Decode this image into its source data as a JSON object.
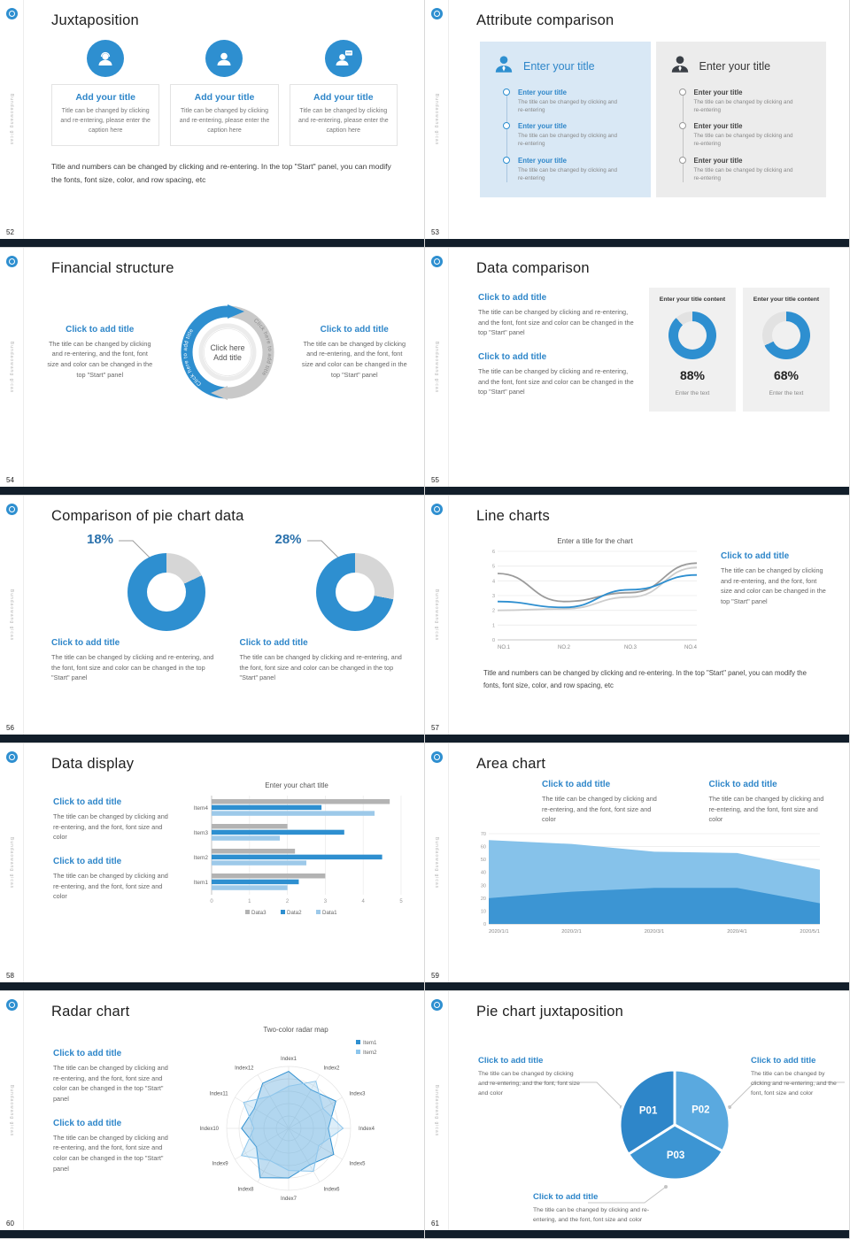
{
  "sidebar": {
    "text": "Bundaowang gicas"
  },
  "colors": {
    "accent": "#2e8fd0",
    "accent_text": "#2e86c9",
    "footer_bar": "#121e2a",
    "panel_blue": "#d9e8f5",
    "panel_gray": "#ececec"
  },
  "icons": {
    "logo": "brand-logo-icon",
    "card1": "support-agent-icon",
    "card2": "user-icon",
    "card3": "chat-user-icon",
    "panel_left": "person-blue-icon",
    "panel_right": "person-dark-icon"
  },
  "slides": [
    {
      "number": "52",
      "title": "Juxtaposition",
      "cards": [
        {
          "title": "Add your title",
          "caption": "Title can be changed by clicking and re-entering, please enter the caption here"
        },
        {
          "title": "Add your title",
          "caption": "Title can be changed by clicking and re-entering, please enter the caption here"
        },
        {
          "title": "Add your title",
          "caption": "Title can be changed by clicking and re-entering, please enter the caption here"
        }
      ],
      "footnote": "Title and numbers can be changed by clicking and re-entering. In the top \"Start\" panel, you can modify the fonts, font size, color, and row spacing, etc"
    },
    {
      "number": "53",
      "title": "Attribute comparison",
      "panels": [
        {
          "title": "Enter your title",
          "items": [
            {
              "title": "Enter your title",
              "desc": "The title can be changed by clicking and re-entering"
            },
            {
              "title": "Enter your title",
              "desc": "The title can be changed by clicking and re-entering"
            },
            {
              "title": "Enter your title",
              "desc": "The title can be changed by clicking and re-entering"
            }
          ]
        },
        {
          "title": "Enter your title",
          "items": [
            {
              "title": "Enter your title",
              "desc": "The title can be changed by clicking and re-entering"
            },
            {
              "title": "Enter your title",
              "desc": "The title can be changed by clicking and re-entering"
            },
            {
              "title": "Enter your title",
              "desc": "The title can be changed by clicking and re-entering"
            }
          ]
        }
      ]
    },
    {
      "number": "54",
      "title": "Financial structure",
      "left": {
        "heading": "Click to add title",
        "body": "The title can be changed by clicking and re-entering, and the font, font size and color can be changed in the top \"Start\" panel"
      },
      "right": {
        "heading": "Click to add title",
        "body": "The title can be changed by clicking and re-entering, and the font, font size and color can be changed in the top \"Start\" panel"
      },
      "center": {
        "line1": "Click here",
        "line2": "Add title"
      },
      "arc_label_left": "Click here to add title",
      "arc_label_right": "Click here to add title"
    },
    {
      "number": "55",
      "title": "Data comparison",
      "sections": [
        {
          "heading": "Click to add title",
          "body": "The title can be changed by clicking and re-entering, and the font, font size and color can be changed in the top \"Start\" panel"
        },
        {
          "heading": "Click to add title",
          "body": "The title can be changed by clicking and re-entering, and the font, font size and color can be changed in the top \"Start\" panel"
        }
      ],
      "cards": [
        {
          "header": "Enter your title content",
          "percent_label": "88%",
          "caption": "Enter the text",
          "donut": {
            "value": 88,
            "color": "#2e8fd0",
            "rest": "#e2e2e2"
          }
        },
        {
          "header": "Enter your title content",
          "percent_label": "68%",
          "caption": "Enter the text",
          "donut": {
            "value": 68,
            "color": "#2e8fd0",
            "rest": "#e2e2e2"
          }
        }
      ]
    },
    {
      "number": "56",
      "title": "Comparison of pie chart data",
      "charts": [
        {
          "percent_label": "18%",
          "heading": "Click to add title",
          "body": "The title can be changed by clicking and re-entering, and the font, font size and color can be changed in the top \"Start\" panel",
          "donut": {
            "value": 18,
            "color": "#d6d6d6",
            "rest": "#2e8fd0"
          }
        },
        {
          "percent_label": "28%",
          "heading": "Click to add title",
          "body": "The title can be changed by clicking and re-entering, and the font, font size and color can be changed in the top \"Start\" panel",
          "donut": {
            "value": 28,
            "color": "#d6d6d6",
            "rest": "#2e8fd0"
          }
        }
      ]
    },
    {
      "number": "57",
      "title": "Line charts",
      "chart_data": {
        "type": "line",
        "title": "Enter a title for the chart",
        "x_labels": [
          "NO.1",
          "NO.2",
          "NO.3",
          "NO.4"
        ],
        "ylim": [
          0,
          6
        ],
        "grid": true,
        "series": [
          {
            "name": "series-gray",
            "color": "#9b9b9b",
            "values": [
              4.5,
              2.6,
              3.2,
              5.2
            ]
          },
          {
            "name": "series-lightgray",
            "color": "#cdcdcd",
            "values": [
              2.0,
              2.1,
              2.9,
              4.9
            ]
          },
          {
            "name": "series-blue",
            "color": "#2e8fd0",
            "values": [
              2.6,
              2.2,
              3.4,
              4.4
            ]
          }
        ]
      },
      "side": {
        "heading": "Click to add title",
        "body": "The title can be changed by clicking and re-entering, and the font, font size and color can be changed in the top \"Start\" panel"
      },
      "footnote": "Title and numbers can be changed by clicking and re-entering. In the top \"Start\" panel, you can modify the fonts, font size, color, and row spacing, etc"
    },
    {
      "number": "58",
      "title": "Data display",
      "sections": [
        {
          "heading": "Click to add title",
          "body": "The title can be changed by clicking and re-entering, and the font, font size and color"
        },
        {
          "heading": "Click to add title",
          "body": "The title can be changed by clicking and re-entering, and the font, font size and color"
        }
      ],
      "chart_data": {
        "type": "bar",
        "title": "Enter your chart title",
        "categories": [
          "Item1",
          "Item2",
          "Item3",
          "Item4"
        ],
        "xlim": [
          0,
          5
        ],
        "legend_position": "bottom",
        "series": [
          {
            "name": "Data3",
            "color": "#b3b3b3",
            "values": [
              3.0,
              2.2,
              2.0,
              4.7
            ]
          },
          {
            "name": "Data2",
            "color": "#2e8fd0",
            "values": [
              2.3,
              4.5,
              3.5,
              2.9
            ]
          },
          {
            "name": "Data1",
            "color": "#9dc9e9",
            "values": [
              2.0,
              2.5,
              1.8,
              4.3
            ]
          }
        ]
      }
    },
    {
      "number": "59",
      "title": "Area chart",
      "sections": [
        {
          "heading": "Click to add title",
          "body": "The title can be changed by clicking and re-entering, and the font, font size and color"
        },
        {
          "heading": "Click to add title",
          "body": "The title can be changed by clicking and re-entering, and the font, font size and color"
        }
      ],
      "chart_data": {
        "type": "area",
        "x_labels": [
          "2020/1/1",
          "2020/2/1",
          "2020/3/1",
          "2020/4/1",
          "2020/5/1"
        ],
        "ylim": [
          0,
          70
        ],
        "ystep": 10,
        "layers": [
          {
            "name": "upper",
            "color": "#86c2ea",
            "values": [
              65,
              62,
              56,
              55,
              42
            ]
          },
          {
            "name": "lower",
            "color": "#3c95d3",
            "values": [
              20,
              25,
              28,
              28,
              16
            ]
          }
        ]
      }
    },
    {
      "number": "60",
      "title": "Radar chart",
      "sections": [
        {
          "heading": "Click to add title",
          "body": "The title can be changed by clicking and re-entering, and the font, font size and color can be changed in the top \"Start\" panel"
        },
        {
          "heading": "Click to add title",
          "body": "The title can be changed by clicking and re-entering, and the font, font size and color can be changed in the top \"Start\" panel"
        }
      ],
      "chart_data": {
        "type": "radar",
        "title": "Two-color radar map",
        "rmax": 5,
        "axes": [
          "Index1",
          "Index2",
          "Index3",
          "Index4",
          "Index5",
          "Index6",
          "Index7",
          "Index8",
          "Index9",
          "Index10",
          "Index11",
          "Index12"
        ],
        "series": [
          {
            "name": "Item1",
            "color": "#2e8fd0",
            "values": [
              4.6,
              3.6,
              4.4,
              3.2,
              4.2,
              3.4,
              4.0,
              4.6,
              3.0,
              3.8,
              3.2,
              4.2
            ]
          },
          {
            "name": "Item2",
            "color": "#8ec6ec",
            "values": [
              3.4,
              4.4,
              3.2,
              4.4,
              2.8,
              4.0,
              3.4,
              3.0,
              4.4,
              2.8,
              4.2,
              3.0
            ]
          }
        ]
      }
    },
    {
      "number": "61",
      "title": "Pie chart juxtaposition",
      "blocks": [
        {
          "heading": "Click to add title",
          "body": "The title can be changed by clicking and re-entering, and the font, font size and color"
        },
        {
          "heading": "Click to add title",
          "body": "The title can be changed by clicking and re-entering, and the font, font size and color"
        },
        {
          "heading": "Click to add title",
          "body": "The title can be changed by clicking and re-entering, and the font, font size and color"
        }
      ],
      "chart_data": {
        "type": "pie",
        "segments": [
          {
            "label": "P02",
            "value": 33,
            "color": "#5aa9df"
          },
          {
            "label": "P03",
            "value": 33,
            "color": "#3c95d3"
          },
          {
            "label": "P01",
            "value": 34,
            "color": "#2e86c9"
          }
        ]
      }
    }
  ]
}
